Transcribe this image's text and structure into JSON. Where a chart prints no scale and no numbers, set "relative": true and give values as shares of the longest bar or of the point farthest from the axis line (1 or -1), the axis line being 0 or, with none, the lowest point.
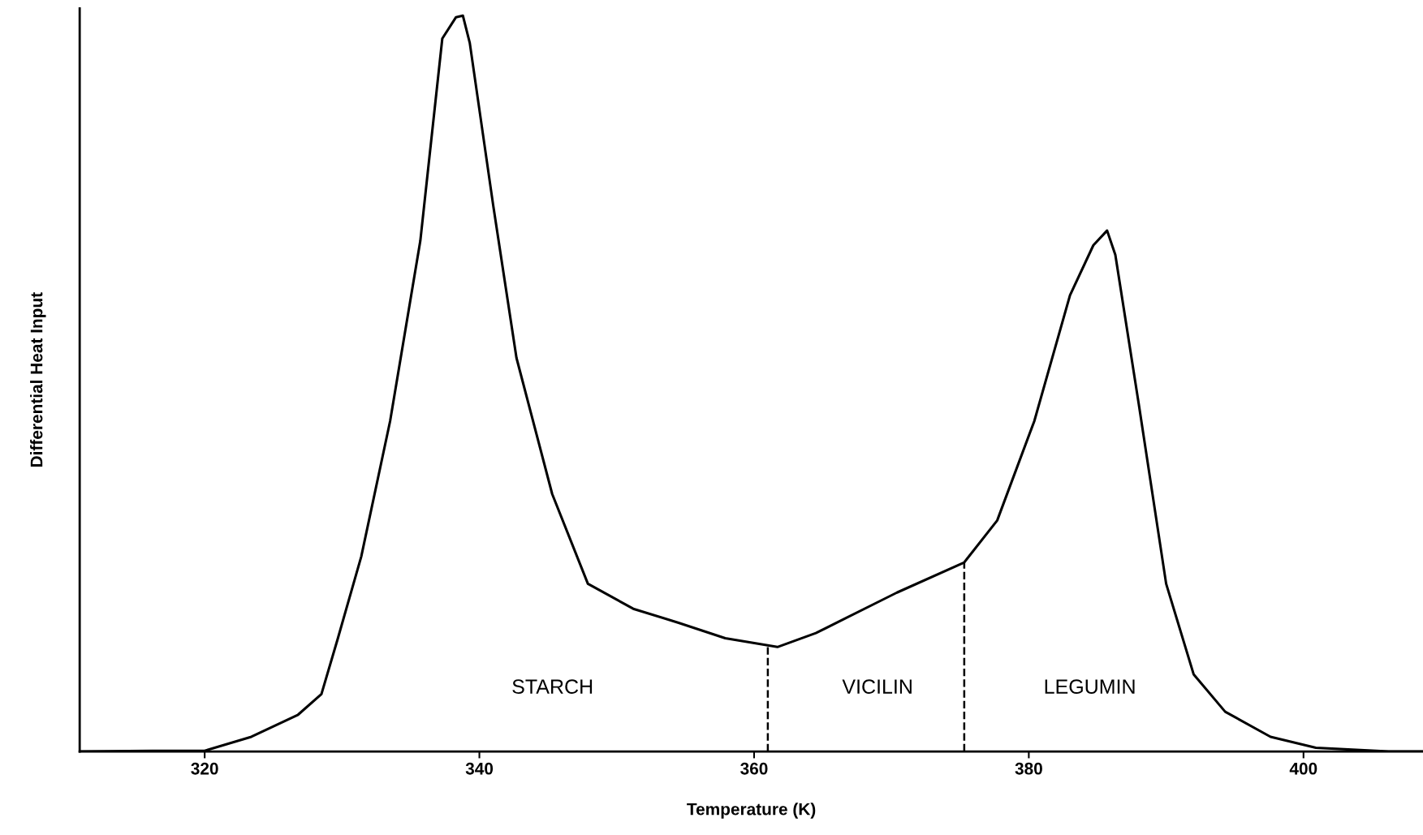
{
  "chart_data": {
    "type": "line",
    "xlabel": "Temperature (K)",
    "ylabel": "Differential Heat Input",
    "relative": true,
    "xlim": [
      310.9,
      408.7
    ],
    "xticks": [
      320,
      340,
      360,
      380,
      400
    ],
    "grid": false,
    "legend": false,
    "marker": "none",
    "line_style": "solid",
    "series": [
      {
        "color": "#000000",
        "x": [
          310.9,
          316.2,
          320,
          323.4,
          326.8,
          328.5,
          329.7,
          331.4,
          333.5,
          335.7,
          337.3,
          338.3,
          338.8,
          339.3,
          341.0,
          342.7,
          345.3,
          347.9,
          351.2,
          354.5,
          357.9,
          361.7,
          364.5,
          370.4,
          375.3,
          377.7,
          380.4,
          383.0,
          384.7,
          385.7,
          386.3,
          388.0,
          390.0,
          392.0,
          394.3,
          397.6,
          400.9,
          406.2,
          408.7
        ],
        "values": [
          0,
          0.001,
          0.001,
          0.02,
          0.05,
          0.078,
          0.154,
          0.265,
          0.449,
          0.694,
          0.969,
          0.998,
          1,
          0.963,
          0.743,
          0.535,
          0.35,
          0.228,
          0.194,
          0.175,
          0.154,
          0.142,
          0.161,
          0.216,
          0.257,
          0.314,
          0.449,
          0.62,
          0.688,
          0.708,
          0.675,
          0.473,
          0.228,
          0.105,
          0.054,
          0.02,
          0.005,
          0,
          0
        ]
      }
    ],
    "ref_lines": [
      {
        "axis": "x",
        "value": 361.0,
        "color": "#000000",
        "line_style": "dashed"
      },
      {
        "axis": "x",
        "value": 375.3,
        "color": "#000000",
        "line_style": "dashed"
      }
    ],
    "annotations": [
      "STARCH",
      "VICILIN",
      "LEGUMIN"
    ]
  }
}
